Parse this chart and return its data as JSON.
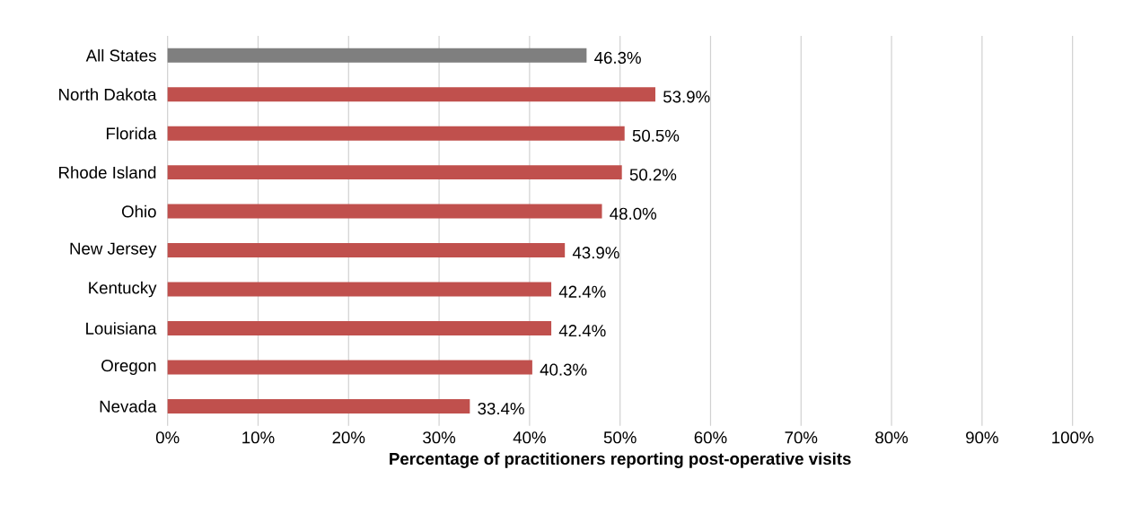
{
  "chart_data": {
    "type": "bar",
    "orientation": "horizontal",
    "xlabel": "Percentage of practitioners reporting post-operative visits",
    "categories": [
      "All States",
      "North Dakota",
      "Florida",
      "Rhode Island",
      "Ohio",
      "New Jersey",
      "Kentucky",
      "Louisiana",
      "Oregon",
      "Nevada"
    ],
    "values": [
      46.3,
      53.9,
      50.5,
      50.2,
      48.0,
      43.9,
      42.4,
      42.4,
      40.3,
      33.4
    ],
    "colors": [
      "#7f7f7f",
      "#c0504d",
      "#c0504d",
      "#c0504d",
      "#c0504d",
      "#c0504d",
      "#c0504d",
      "#c0504d",
      "#c0504d",
      "#c0504d"
    ],
    "value_labels": [
      "46.3%",
      "53.9%",
      "50.5%",
      "50.2%",
      "48.0%",
      "43.9%",
      "42.4%",
      "42.4%",
      "40.3%",
      "33.4%"
    ],
    "xlim": [
      0,
      100
    ],
    "xticks": [
      {
        "value": 0,
        "label": "0%"
      },
      {
        "value": 10,
        "label": "10%"
      },
      {
        "value": 20,
        "label": "20%"
      },
      {
        "value": 30,
        "label": "30%"
      },
      {
        "value": 40,
        "label": "40%"
      },
      {
        "value": 50,
        "label": "50%"
      },
      {
        "value": 60,
        "label": "60%"
      },
      {
        "value": 70,
        "label": "70%"
      },
      {
        "value": 80,
        "label": "80%"
      },
      {
        "value": 90,
        "label": "90%"
      },
      {
        "value": 100,
        "label": "100%"
      }
    ],
    "grid": "x"
  }
}
